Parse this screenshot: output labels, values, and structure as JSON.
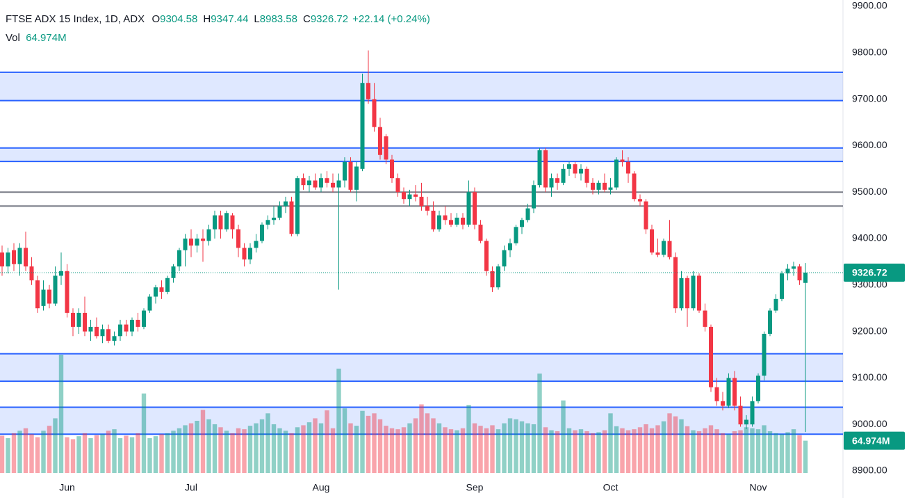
{
  "chart_data": {
    "type": "candlestick",
    "legend": {
      "name": "FTSE ADX 15 Index, 1D, ADX",
      "fields": [
        {
          "key": "O",
          "value": "9304.58"
        },
        {
          "key": "H",
          "value": "9347.44"
        },
        {
          "key": "L",
          "value": "8983.58"
        },
        {
          "key": "C",
          "value": "9326.72"
        }
      ],
      "change": "+22.14 (+0.24%)",
      "vol_key": "Vol",
      "vol_value": "64.974M"
    },
    "ylim": [
      8900,
      9900
    ],
    "yticks": [
      {
        "value": 8900,
        "label": "8900.00"
      },
      {
        "value": 9000,
        "label": "9000.00"
      },
      {
        "value": 9100,
        "label": "9100.00"
      },
      {
        "value": 9200,
        "label": "9200.00"
      },
      {
        "value": 9300,
        "label": "9300.00"
      },
      {
        "value": 9400,
        "label": "9400.00"
      },
      {
        "value": 9500,
        "label": "9500.00"
      },
      {
        "value": 9600,
        "label": "9600.00"
      },
      {
        "value": 9700,
        "label": "9700.00"
      },
      {
        "value": 9800,
        "label": "9800.00"
      },
      {
        "value": 9900,
        "label": "9900.00"
      }
    ],
    "up_color": "#089981",
    "down_color": "#f23645",
    "zone_color": "#2962ff",
    "line_color": "#787b86",
    "zones": [
      [
        9697,
        9758
      ],
      [
        9566,
        9595
      ],
      [
        9093,
        9152
      ],
      [
        8979,
        9037
      ]
    ],
    "lines": [
      9500,
      9470
    ],
    "categories": [
      null,
      null,
      null,
      null,
      null,
      null,
      null,
      null,
      null,
      null,
      null,
      "Jun",
      null,
      null,
      null,
      null,
      null,
      null,
      null,
      null,
      null,
      null,
      null,
      null,
      null,
      null,
      null,
      null,
      null,
      null,
      null,
      null,
      "Jul",
      null,
      null,
      null,
      null,
      null,
      null,
      null,
      null,
      null,
      null,
      null,
      null,
      null,
      null,
      null,
      null,
      null,
      null,
      null,
      null,
      null,
      "Aug",
      null,
      null,
      null,
      null,
      null,
      null,
      null,
      null,
      null,
      null,
      null,
      null,
      null,
      null,
      null,
      null,
      null,
      null,
      null,
      null,
      null,
      null,
      null,
      null,
      null,
      "Sep",
      null,
      null,
      null,
      null,
      null,
      null,
      null,
      null,
      null,
      null,
      null,
      null,
      null,
      null,
      null,
      null,
      null,
      null,
      null,
      null,
      null,
      null,
      "Oct",
      null,
      null,
      null,
      null,
      null,
      null,
      null,
      null,
      null,
      null,
      null,
      null,
      null,
      null,
      null,
      null,
      null,
      null,
      null,
      null,
      null,
      null,
      null,
      null,
      "Nov",
      null,
      null,
      null,
      null,
      null,
      null,
      null,
      null
    ],
    "ohlc": [
      [
        9370,
        9385,
        9320,
        9340
      ],
      [
        9340,
        9380,
        9325,
        9370
      ],
      [
        9375,
        9390,
        9330,
        9345
      ],
      [
        9345,
        9390,
        9320,
        9380
      ],
      [
        9380,
        9415,
        9330,
        9340
      ],
      [
        9340,
        9360,
        9300,
        9310
      ],
      [
        9310,
        9320,
        9240,
        9250
      ],
      [
        9255,
        9310,
        9245,
        9290
      ],
      [
        9290,
        9300,
        9250,
        9260
      ],
      [
        9260,
        9340,
        9255,
        9320
      ],
      [
        9320,
        9370,
        9300,
        9330
      ],
      [
        9330,
        9345,
        9230,
        9240
      ],
      [
        9240,
        9250,
        9190,
        9210
      ],
      [
        9210,
        9250,
        9195,
        9240
      ],
      [
        9240,
        9275,
        9190,
        9200
      ],
      [
        9200,
        9225,
        9180,
        9210
      ],
      [
        9210,
        9230,
        9185,
        9190
      ],
      [
        9190,
        9215,
        9175,
        9205
      ],
      [
        9205,
        9215,
        9175,
        9180
      ],
      [
        9180,
        9200,
        9170,
        9190
      ],
      [
        9190,
        9225,
        9180,
        9215
      ],
      [
        9215,
        9225,
        9190,
        9200
      ],
      [
        9200,
        9230,
        9190,
        9225
      ],
      [
        9225,
        9240,
        9200,
        9210
      ],
      [
        9210,
        9250,
        9205,
        9245
      ],
      [
        9245,
        9280,
        9240,
        9275
      ],
      [
        9275,
        9300,
        9260,
        9295
      ],
      [
        9295,
        9310,
        9270,
        9285
      ],
      [
        9285,
        9320,
        9280,
        9315
      ],
      [
        9315,
        9345,
        9305,
        9340
      ],
      [
        9340,
        9380,
        9330,
        9375
      ],
      [
        9375,
        9410,
        9340,
        9400
      ],
      [
        9400,
        9420,
        9360,
        9385
      ],
      [
        9385,
        9410,
        9370,
        9400
      ],
      [
        9400,
        9420,
        9350,
        9395
      ],
      [
        9395,
        9430,
        9385,
        9420
      ],
      [
        9420,
        9460,
        9400,
        9450
      ],
      [
        9450,
        9460,
        9400,
        9420
      ],
      [
        9420,
        9460,
        9415,
        9455
      ],
      [
        9450,
        9455,
        9400,
        9420
      ],
      [
        9420,
        9430,
        9360,
        9380
      ],
      [
        9380,
        9390,
        9340,
        9355
      ],
      [
        9355,
        9390,
        9345,
        9380
      ],
      [
        9380,
        9410,
        9370,
        9395
      ],
      [
        9395,
        9435,
        9390,
        9430
      ],
      [
        9430,
        9450,
        9420,
        9440
      ],
      [
        9440,
        9470,
        9430,
        9445
      ],
      [
        9445,
        9480,
        9440,
        9470
      ],
      [
        9470,
        9490,
        9455,
        9480
      ],
      [
        9480,
        9490,
        9405,
        9410
      ],
      [
        9410,
        9535,
        9405,
        9530
      ],
      [
        9530,
        9540,
        9505,
        9515
      ],
      [
        9515,
        9535,
        9500,
        9525
      ],
      [
        9525,
        9540,
        9505,
        9510
      ],
      [
        9510,
        9540,
        9500,
        9530
      ],
      [
        9530,
        9545,
        9510,
        9520
      ],
      [
        9520,
        9540,
        9500,
        9510
      ],
      [
        9510,
        9540,
        9290,
        9525
      ],
      [
        9525,
        9575,
        9510,
        9565
      ],
      [
        9565,
        9575,
        9500,
        9505
      ],
      [
        9505,
        9565,
        9480,
        9555
      ],
      [
        9550,
        9755,
        9545,
        9735
      ],
      [
        9735,
        9805,
        9690,
        9700
      ],
      [
        9700,
        9735,
        9630,
        9640
      ],
      [
        9640,
        9660,
        9570,
        9580
      ],
      [
        9620,
        9625,
        9560,
        9570
      ],
      [
        9570,
        9580,
        9520,
        9530
      ],
      [
        9530,
        9540,
        9490,
        9500
      ],
      [
        9500,
        9510,
        9475,
        9485
      ],
      [
        9485,
        9505,
        9470,
        9495
      ],
      [
        9495,
        9515,
        9480,
        9490
      ],
      [
        9490,
        9520,
        9460,
        9470
      ],
      [
        9470,
        9490,
        9450,
        9460
      ],
      [
        9460,
        9480,
        9415,
        9420
      ],
      [
        9420,
        9460,
        9415,
        9450
      ],
      [
        9450,
        9470,
        9430,
        9440
      ],
      [
        9440,
        9455,
        9425,
        9430
      ],
      [
        9430,
        9455,
        9425,
        9445
      ],
      [
        9445,
        9455,
        9420,
        9430
      ],
      [
        9430,
        9525,
        9425,
        9500
      ],
      [
        9500,
        9510,
        9420,
        9430
      ],
      [
        9430,
        9440,
        9390,
        9395
      ],
      [
        9395,
        9400,
        9320,
        9330
      ],
      [
        9330,
        9340,
        9285,
        9295
      ],
      [
        9295,
        9345,
        9290,
        9340
      ],
      [
        9340,
        9385,
        9330,
        9375
      ],
      [
        9375,
        9400,
        9360,
        9390
      ],
      [
        9390,
        9430,
        9385,
        9425
      ],
      [
        9425,
        9445,
        9410,
        9440
      ],
      [
        9440,
        9475,
        9435,
        9465
      ],
      [
        9465,
        9525,
        9455,
        9515
      ],
      [
        9515,
        9595,
        9510,
        9590
      ],
      [
        9590,
        9595,
        9500,
        9510
      ],
      [
        9510,
        9540,
        9490,
        9530
      ],
      [
        9530,
        9540,
        9505,
        9520
      ],
      [
        9520,
        9560,
        9515,
        9550
      ],
      [
        9550,
        9565,
        9535,
        9560
      ],
      [
        9560,
        9565,
        9530,
        9540
      ],
      [
        9540,
        9560,
        9525,
        9550
      ],
      [
        9550,
        9555,
        9510,
        9520
      ],
      [
        9520,
        9530,
        9495,
        9505
      ],
      [
        9505,
        9525,
        9495,
        9520
      ],
      [
        9520,
        9540,
        9500,
        9505
      ],
      [
        9505,
        9530,
        9495,
        9510
      ],
      [
        9510,
        9575,
        9505,
        9570
      ],
      [
        9570,
        9590,
        9555,
        9565
      ],
      [
        9565,
        9575,
        9520,
        9540
      ],
      [
        9540,
        9545,
        9480,
        9485
      ],
      [
        9485,
        9495,
        9470,
        9480
      ],
      [
        9480,
        9485,
        9410,
        9420
      ],
      [
        9420,
        9430,
        9365,
        9370
      ],
      [
        9370,
        9400,
        9360,
        9365
      ],
      [
        9365,
        9400,
        9360,
        9395
      ],
      [
        9395,
        9440,
        9355,
        9360
      ],
      [
        9360,
        9370,
        9240,
        9250
      ],
      [
        9250,
        9330,
        9245,
        9315
      ],
      [
        9315,
        9320,
        9210,
        9250
      ],
      [
        9250,
        9330,
        9245,
        9320
      ],
      [
        9320,
        9325,
        9240,
        9245
      ],
      [
        9245,
        9260,
        9200,
        9210
      ],
      [
        9210,
        9215,
        9070,
        9080
      ],
      [
        9080,
        9100,
        9040,
        9050
      ],
      [
        9050,
        9070,
        9030,
        9040
      ],
      [
        9040,
        9110,
        9035,
        9100
      ],
      [
        9100,
        9115,
        9030,
        9040
      ],
      [
        9040,
        9060,
        8995,
        9000
      ],
      [
        9000,
        9020,
        8990,
        9010
      ],
      [
        9000,
        9060,
        8995,
        9050
      ],
      [
        9050,
        9110,
        9045,
        9105
      ],
      [
        9105,
        9200,
        9095,
        9195
      ],
      [
        9195,
        9250,
        9190,
        9245
      ],
      [
        9245,
        9280,
        9240,
        9270
      ],
      [
        9270,
        9330,
        9265,
        9325
      ],
      [
        9325,
        9345,
        9310,
        9335
      ],
      [
        9335,
        9350,
        9320,
        9340
      ],
      [
        9340,
        9345,
        9300,
        9310
      ],
      [
        9304.58,
        9347.44,
        8983.58,
        9326.72
      ]
    ],
    "volume": [
      75,
      70,
      80,
      85,
      90,
      78,
      72,
      85,
      95,
      110,
      238,
      72,
      68,
      74,
      80,
      70,
      76,
      78,
      85,
      88,
      70,
      75,
      72,
      80,
      160,
      70,
      74,
      78,
      80,
      85,
      90,
      96,
      100,
      105,
      127,
      108,
      98,
      92,
      85,
      80,
      90,
      88,
      95,
      100,
      108,
      120,
      98,
      90,
      85,
      80,
      92,
      96,
      102,
      110,
      100,
      126,
      90,
      210,
      130,
      100,
      95,
      125,
      115,
      120,
      108,
      95,
      90,
      88,
      92,
      100,
      110,
      138,
      120,
      110,
      100,
      92,
      88,
      86,
      90,
      137,
      100,
      95,
      90,
      96,
      88,
      100,
      110,
      108,
      104,
      100,
      98,
      200,
      92,
      86,
      84,
      146,
      90,
      86,
      88,
      84,
      80,
      82,
      86,
      120,
      94,
      90,
      86,
      88,
      92,
      98,
      90,
      96,
      104,
      120,
      114,
      108,
      94,
      86,
      84,
      90,
      96,
      88,
      80,
      78,
      84,
      86,
      92,
      90,
      88,
      96,
      84,
      80,
      78,
      82,
      88,
      76,
      64.974
    ]
  }
}
